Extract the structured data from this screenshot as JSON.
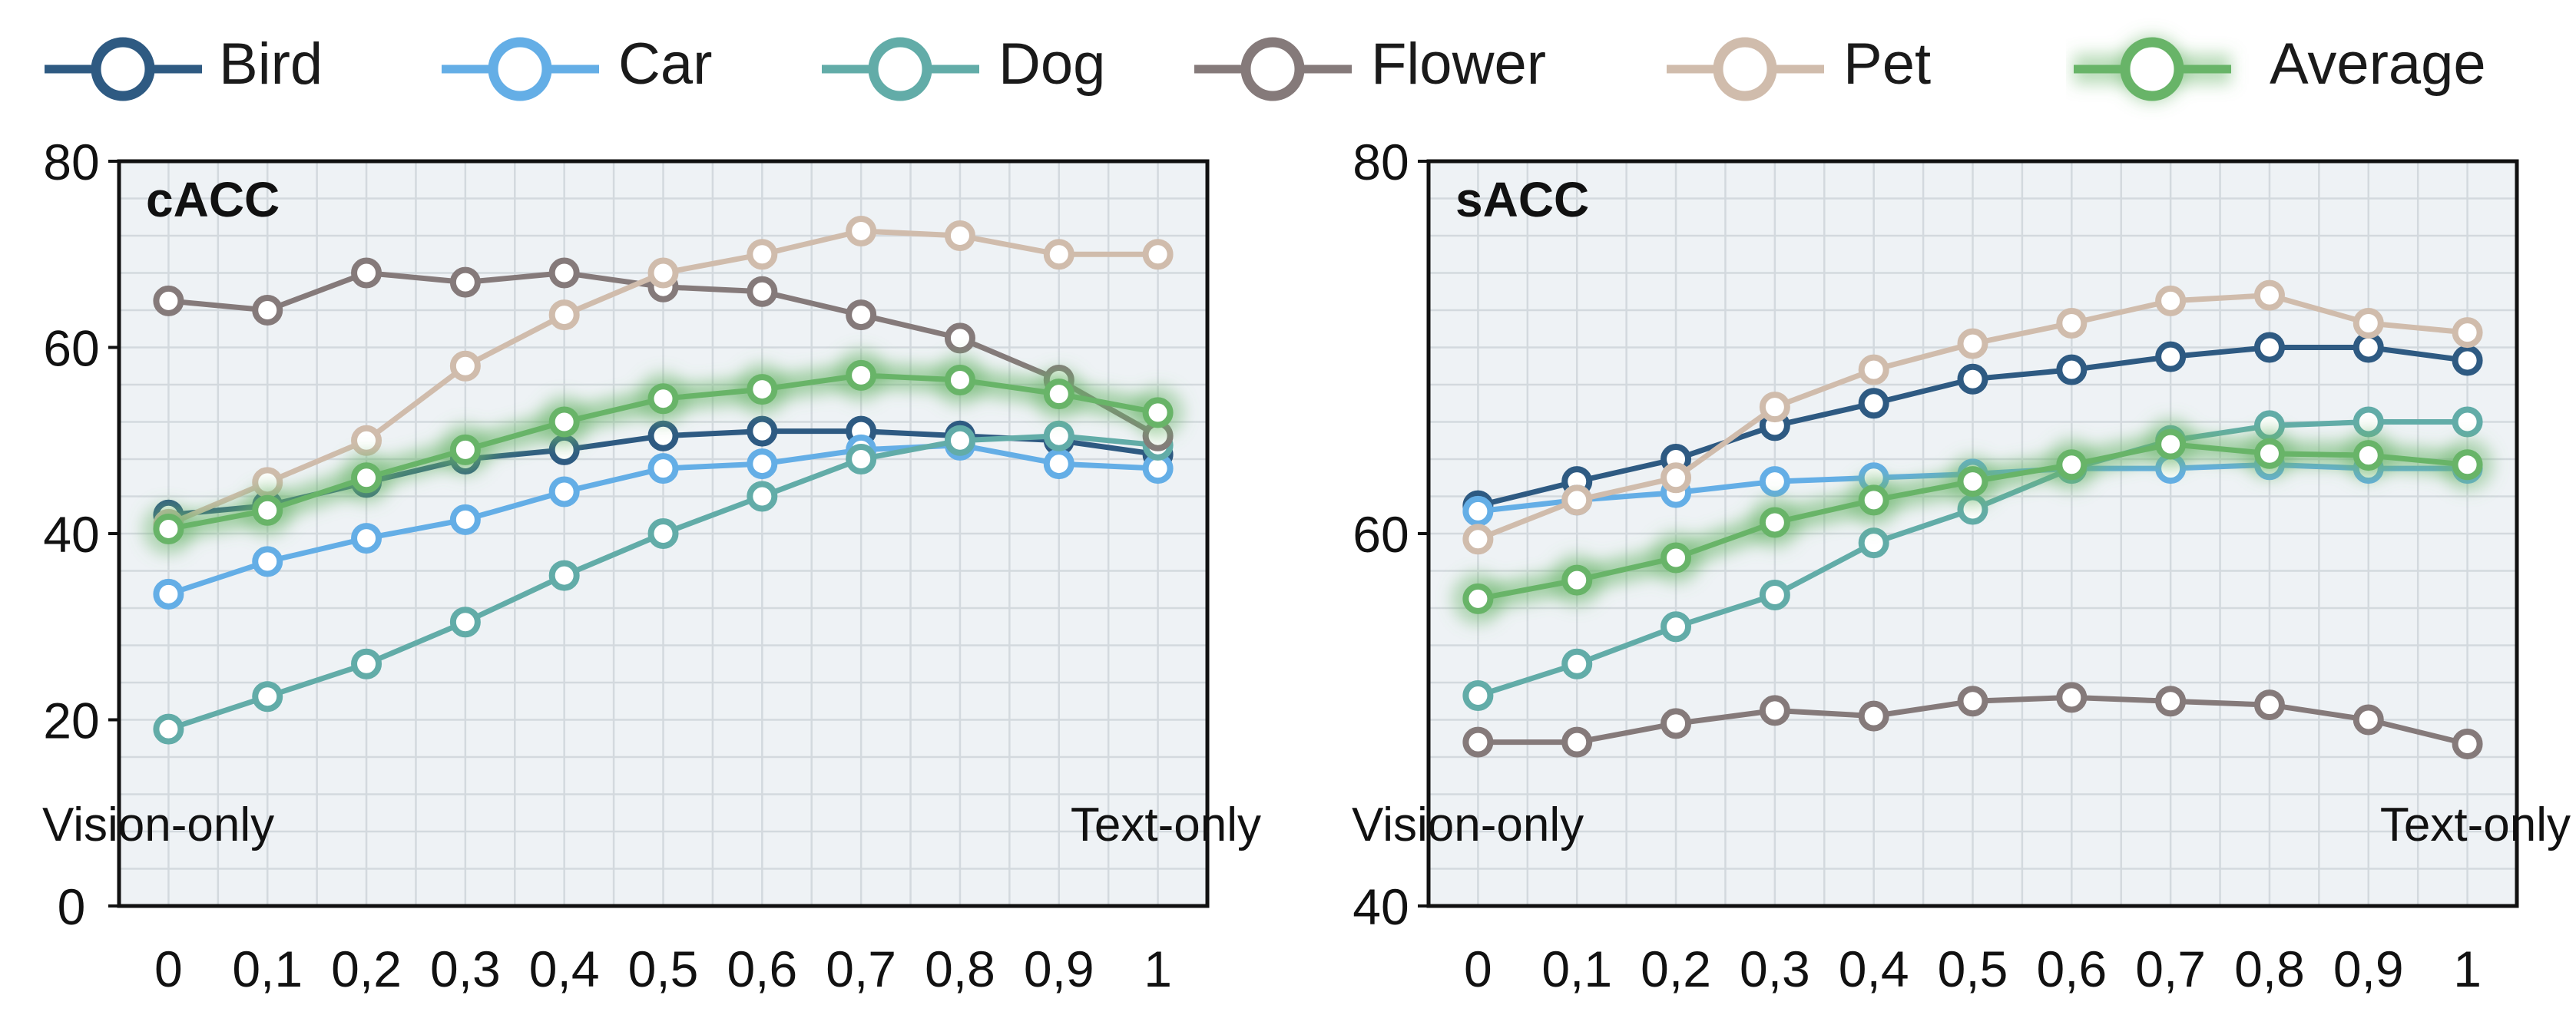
{
  "legend": [
    {
      "name": "Bird",
      "color": "#2e5a82"
    },
    {
      "name": "Car",
      "color": "#64aee6"
    },
    {
      "name": "Dog",
      "color": "#62aca8"
    },
    {
      "name": "Flower",
      "color": "#857a7a"
    },
    {
      "name": "Pet",
      "color": "#d0bcac"
    },
    {
      "name": "Average",
      "color": "#68b468"
    }
  ],
  "chart_data": [
    {
      "type": "line",
      "title": "cACC",
      "x": [
        0,
        0.1,
        0.2,
        0.3,
        0.4,
        0.5,
        0.6,
        0.7,
        0.8,
        0.9,
        1
      ],
      "x_tick_labels": [
        "0",
        "0,1",
        "0,2",
        "0,3",
        "0,4",
        "0,5",
        "0,6",
        "0,7",
        "0,8",
        "0,9",
        "1"
      ],
      "ylim": [
        0,
        80
      ],
      "y_ticks": [
        0,
        20,
        40,
        60,
        80
      ],
      "annotations": {
        "left": "Vision-only",
        "right": "Text-only"
      },
      "grid": true,
      "series": [
        {
          "name": "Bird",
          "color": "#2e5a82",
          "values": [
            42,
            43,
            45.5,
            48,
            49,
            50.5,
            51,
            51,
            50.5,
            50,
            48.5
          ]
        },
        {
          "name": "Car",
          "color": "#64aee6",
          "values": [
            33.5,
            37,
            39.5,
            41.5,
            44.5,
            47,
            47.5,
            49,
            49.5,
            47.5,
            47
          ]
        },
        {
          "name": "Dog",
          "color": "#62aca8",
          "values": [
            19,
            22.5,
            26,
            30.5,
            35.5,
            40,
            44,
            48,
            50,
            50.5,
            49.5
          ]
        },
        {
          "name": "Flower",
          "color": "#857a7a",
          "values": [
            65,
            64,
            68,
            67,
            68,
            66.5,
            66,
            63.5,
            61,
            56.5,
            50.5
          ]
        },
        {
          "name": "Pet",
          "color": "#d0bcac",
          "values": [
            41,
            45.5,
            50,
            58,
            63.5,
            68,
            70,
            72.5,
            72,
            70,
            70
          ]
        },
        {
          "name": "Average",
          "color": "#68b468",
          "values": [
            40.5,
            42.5,
            46,
            49,
            52,
            54.5,
            55.5,
            57,
            56.5,
            55,
            53
          ]
        }
      ]
    },
    {
      "type": "line",
      "title": "sACC",
      "x": [
        0,
        0.1,
        0.2,
        0.3,
        0.4,
        0.5,
        0.6,
        0.7,
        0.8,
        0.9,
        1
      ],
      "x_tick_labels": [
        "0",
        "0,1",
        "0,2",
        "0,3",
        "0,4",
        "0,5",
        "0,6",
        "0,7",
        "0,8",
        "0,9",
        "1"
      ],
      "ylim": [
        40,
        80
      ],
      "y_ticks": [
        40,
        60,
        80
      ],
      "annotations": {
        "left": "Vision-only",
        "right": "Text-only"
      },
      "grid": true,
      "series": [
        {
          "name": "Bird",
          "color": "#2e5a82",
          "values": [
            61.5,
            62.8,
            64,
            65.8,
            67,
            68.3,
            68.8,
            69.5,
            70,
            70,
            69.3
          ]
        },
        {
          "name": "Car",
          "color": "#64aee6",
          "values": [
            61.2,
            61.8,
            62.2,
            62.8,
            63,
            63.2,
            63.5,
            63.5,
            63.7,
            63.5,
            63.5
          ]
        },
        {
          "name": "Dog",
          "color": "#62aca8",
          "values": [
            51.3,
            53,
            55,
            56.7,
            59.5,
            61.3,
            63.5,
            65,
            65.8,
            66,
            66
          ]
        },
        {
          "name": "Flower",
          "color": "#857a7a",
          "values": [
            48.8,
            48.8,
            49.8,
            50.5,
            50.2,
            51,
            51.2,
            51,
            50.8,
            50,
            48.7
          ]
        },
        {
          "name": "Pet",
          "color": "#d0bcac",
          "values": [
            59.7,
            61.8,
            63,
            66.8,
            68.8,
            70.2,
            71.3,
            72.5,
            72.8,
            71.3,
            70.8
          ]
        },
        {
          "name": "Average",
          "color": "#68b468",
          "values": [
            56.5,
            57.5,
            58.7,
            60.6,
            61.8,
            62.8,
            63.7,
            64.8,
            64.3,
            64.2,
            63.7
          ]
        }
      ]
    }
  ]
}
